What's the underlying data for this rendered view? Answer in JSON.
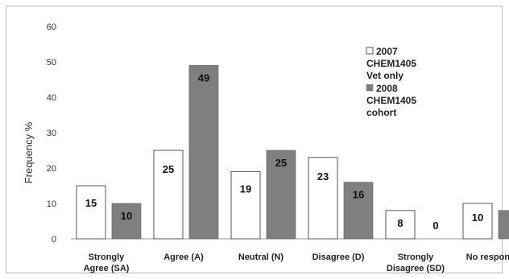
{
  "chart_data": {
    "type": "bar",
    "ylabel": "Frequency %",
    "ylim": [
      0,
      60
    ],
    "yticks": [
      0,
      10,
      20,
      30,
      40,
      50,
      60
    ],
    "categories": [
      [
        "Strongly",
        "Agree (SA)"
      ],
      [
        "Agree (A)"
      ],
      [
        "Neutral (N)"
      ],
      [
        "Disagree (D)"
      ],
      [
        "Strongly",
        "Disagree (SD)"
      ],
      [
        "No response"
      ]
    ],
    "series": [
      {
        "name": [
          "2007",
          "CHEM1405",
          "Vet only"
        ],
        "values": [
          15,
          25,
          19,
          23,
          8,
          10
        ],
        "color": "#ffffff"
      },
      {
        "name": [
          "2008",
          "CHEM1405",
          "cohort"
        ],
        "values": [
          10,
          49,
          25,
          16,
          0,
          8
        ],
        "color": "#7f7f7f"
      }
    ],
    "legend_position": "right"
  }
}
